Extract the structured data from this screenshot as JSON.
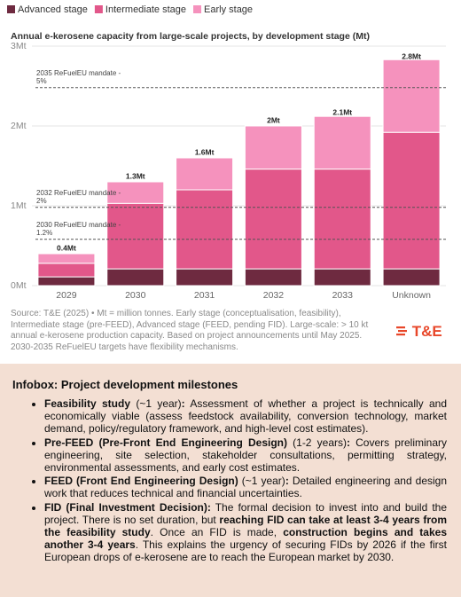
{
  "chart_data": {
    "type": "stacked_bar",
    "subtitle": "Annual e-kerosene capacity from large-scale projects, by development stage (Mt)",
    "categories": [
      "2029",
      "2030",
      "2031",
      "2032",
      "2033",
      "Unknown"
    ],
    "series": [
      {
        "name": "Advanced stage",
        "color": "#6e2a40",
        "values": [
          0.11,
          0.21,
          0.21,
          0.21,
          0.21,
          0.21
        ]
      },
      {
        "name": "Intermediate stage",
        "color": "#e2578a",
        "values": [
          0.17,
          0.82,
          0.99,
          1.25,
          1.25,
          1.71
        ]
      },
      {
        "name": "Early stage",
        "color": "#f592bd",
        "values": [
          0.12,
          0.27,
          0.4,
          0.54,
          0.66,
          0.91
        ]
      }
    ],
    "totals": {
      "values": [
        0.4,
        1.3,
        1.6,
        2,
        2.1,
        2.8
      ],
      "value_labels": [
        "0.4Mt",
        "1.3Mt",
        "1.6Mt",
        "2Mt",
        "2.1Mt",
        "2.8Mt"
      ]
    },
    "ylim": [
      0,
      3
    ],
    "yticks": [
      {
        "value": 0,
        "label": "0Mt"
      },
      {
        "value": 1,
        "label": "1Mt"
      },
      {
        "value": 2,
        "label": "2Mt"
      },
      {
        "value": 3,
        "label": "3Mt"
      }
    ],
    "grid": true,
    "reference_lines": [
      {
        "value": 2.48,
        "label_lines": [
          "2035 ReFuelEU mandate -",
          "5%"
        ]
      },
      {
        "value": 0.98,
        "label_lines": [
          "2032 ReFuelEU mandate -",
          "2%"
        ]
      },
      {
        "value": 0.58,
        "label_lines": [
          "2030 ReFuelEU mandate -",
          "1.2%"
        ]
      }
    ],
    "source_lines": [
      "Source: T&E (2025) • Mt = million tonnes. Early stage (conceptualisation, feasibility),",
      "Intermediate stage (pre-FEED), Advanced stage (FEED, pending FID). Large-scale: > 10 kt",
      "annual e-kerosene production capacity. Based on project announcements until May 2025.",
      "2030-2035 ReFuelEU targets have flexibility mechanisms."
    ],
    "logo": "T&E"
  },
  "infobox": {
    "title": "Infobox: Project development milestones",
    "items": [
      [
        {
          "text": "Feasibility study",
          "bold": true
        },
        {
          "text": " (~1 year)",
          "bold": false
        },
        {
          "text": ":",
          "bold": true
        },
        {
          "text": " Assessment of whether a project is technically and economically viable (assess feedstock availability, conversion technology, market demand, policy/regulatory framework, and high-level cost estimates).",
          "bold": false
        }
      ],
      [
        {
          "text": "Pre-FEED (Pre-Front End Engineering Design)",
          "bold": true
        },
        {
          "text": " (1-2 years)",
          "bold": false
        },
        {
          "text": ":",
          "bold": true
        },
        {
          "text": " Covers preliminary engineering, site selection, stakeholder consultations, permitting strategy, environmental assessments, and early cost estimates.",
          "bold": false
        }
      ],
      [
        {
          "text": "FEED (Front End Engineering Design)",
          "bold": true
        },
        {
          "text": " (~1 year)",
          "bold": false
        },
        {
          "text": ":",
          "bold": true
        },
        {
          "text": " Detailed engineering and design work that reduces technical and financial uncertainties.",
          "bold": false
        }
      ],
      [
        {
          "text": "FID (Final Investment Decision):",
          "bold": true
        },
        {
          "text": " The formal decision to invest into and build the project. There is no set duration, but ",
          "bold": false
        },
        {
          "text": "reaching FID can take at least 3-4 years from the feasibility study",
          "bold": true
        },
        {
          "text": ". Once an FID is made, ",
          "bold": false
        },
        {
          "text": "construction begins and takes another 3-4 years",
          "bold": true
        },
        {
          "text": ". This explains the urgency of securing FIDs by 2026 if the first European drops of e-kerosene are to reach the European market by 2030.",
          "bold": false
        }
      ]
    ]
  }
}
